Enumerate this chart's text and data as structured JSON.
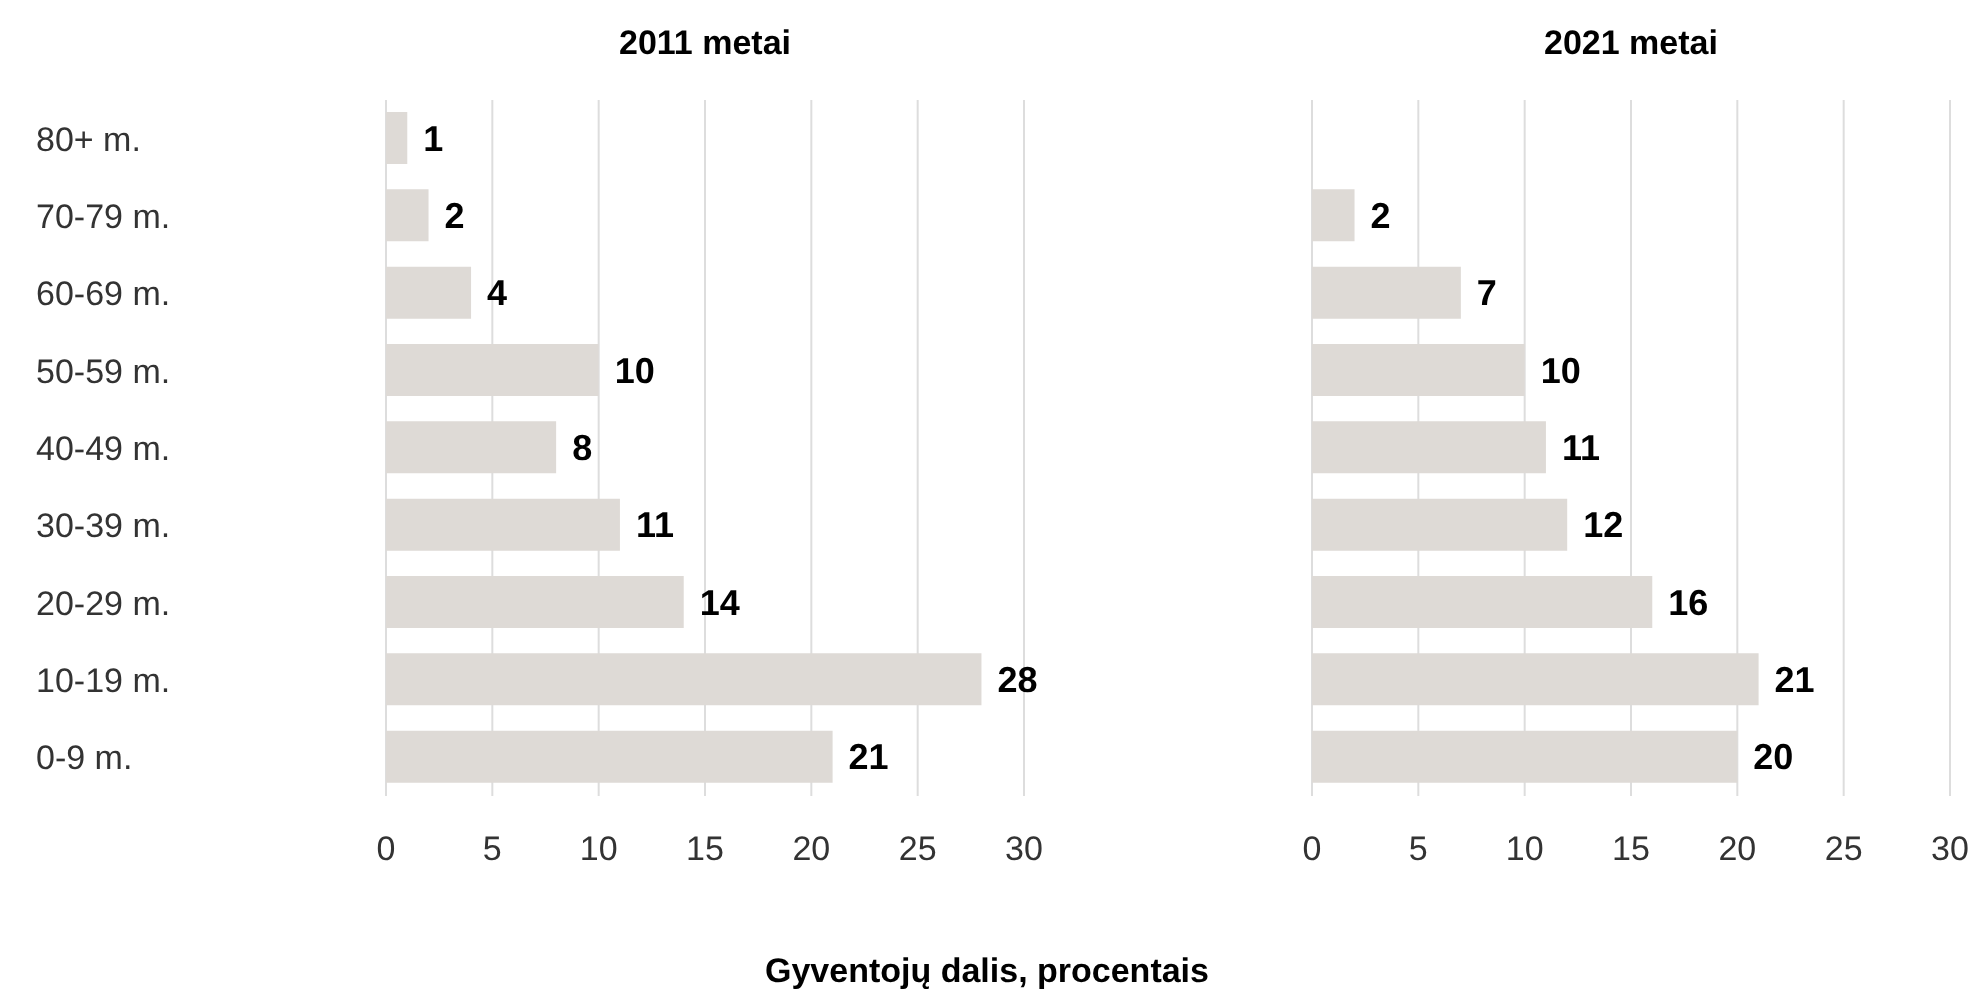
{
  "chart_data": [
    {
      "type": "bar",
      "orientation": "horizontal",
      "title": "2011 metai",
      "xlabel": "Gyventojų dalis, procentais",
      "categories": [
        "80+ m.",
        "70-79 m.",
        "60-69 m.",
        "50-59 m.",
        "40-49 m.",
        "30-39 m.",
        "20-29 m.",
        "10-19 m.",
        "0-9 m."
      ],
      "values": [
        1,
        2,
        4,
        10,
        8,
        11,
        14,
        28,
        21
      ],
      "color": "#dedad6",
      "xlim": [
        0,
        30
      ],
      "xticks": [
        0,
        5,
        10,
        15,
        20,
        25,
        30
      ],
      "grid": "x",
      "data_labels": true
    },
    {
      "type": "bar",
      "orientation": "horizontal",
      "title": "2021 metai",
      "values": [
        null,
        2,
        7,
        10,
        11,
        12,
        16,
        21,
        20
      ],
      "color": "#dedad6",
      "xlim": [
        0,
        30
      ],
      "xticks": [
        0,
        5,
        10,
        15,
        20,
        25,
        30
      ],
      "grid": "x",
      "data_labels": true,
      "tick_labels": "x"
    }
  ]
}
